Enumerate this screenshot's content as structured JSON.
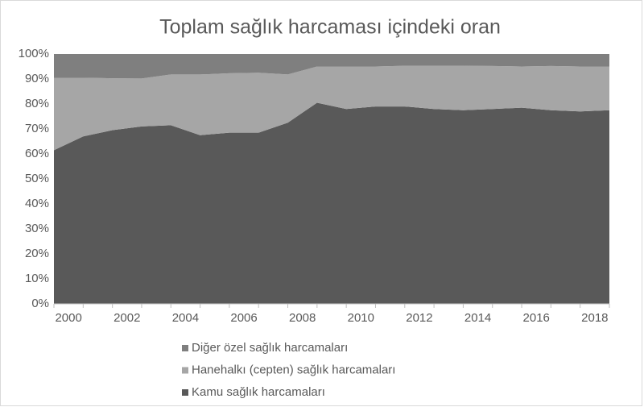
{
  "chart_data": {
    "type": "stacked-area",
    "title": "Toplam sağlık harcaması içindeki oran",
    "categories": [
      "2000",
      null,
      "2002",
      null,
      "2004",
      null,
      "2006",
      null,
      "2008",
      null,
      "2010",
      null,
      "2012",
      null,
      "2014",
      null,
      "2016",
      null,
      "2018",
      null
    ],
    "series": [
      {
        "name": "Kamu sağlık harcamaları",
        "color": "#595959",
        "values": [
          61.5,
          67,
          69.5,
          71,
          71.5,
          67.5,
          68.5,
          68.5,
          72.5,
          80.5,
          78,
          79,
          79,
          78,
          77.5,
          78,
          78.5,
          77.5,
          77,
          77.5
        ]
      },
      {
        "name": "Hanehalkı (cepten) sağlık harcamaları",
        "color": "#a6a6a6",
        "values": [
          29,
          23.5,
          20.8,
          19.2,
          20.3,
          24.3,
          23.8,
          24,
          19.3,
          14.5,
          17,
          16,
          16.3,
          17.3,
          17.8,
          17.2,
          16.5,
          17.7,
          18,
          17.5
        ]
      },
      {
        "name": "Diğer özel sağlık harcamaları",
        "color": "#7f7f7f",
        "values": [
          9.5,
          9.5,
          9.7,
          9.8,
          8.2,
          8.2,
          7.7,
          7.5,
          8.2,
          5,
          5,
          5,
          4.7,
          4.7,
          4.7,
          4.8,
          5,
          4.8,
          5,
          5
        ]
      }
    ],
    "ylim": [
      0,
      100
    ],
    "yticks": [
      {
        "value": 0,
        "label": "0%"
      },
      {
        "value": 10,
        "label": "10%"
      },
      {
        "value": 20,
        "label": "20%"
      },
      {
        "value": 30,
        "label": "30%"
      },
      {
        "value": 40,
        "label": "40%"
      },
      {
        "value": 50,
        "label": "50%"
      },
      {
        "value": 60,
        "label": "60%"
      },
      {
        "value": 70,
        "label": "70%"
      },
      {
        "value": 80,
        "label": "80%"
      },
      {
        "value": 90,
        "label": "90%"
      },
      {
        "value": 100,
        "label": "100%"
      }
    ],
    "legend": "bottom"
  }
}
